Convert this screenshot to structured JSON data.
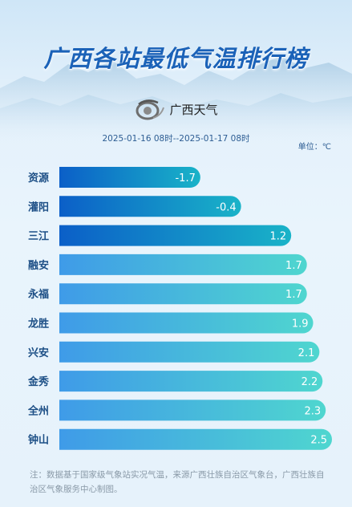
{
  "title": "广西各站最低气温排行榜",
  "logo_text": "广西天气",
  "date_range": "2025-01-16 08时--2025-01-17 08时",
  "unit": "单位：℃",
  "note": "注：数据基于国家级气象站实况气温，来源广西壮族自治区气象台，广西壮族自治区气象服务中心制图。",
  "colors": {
    "title": "#1b62b8",
    "bar_top_start": "#0b5fc8",
    "bar_top_end": "#19b3c8",
    "bar_rest_start": "#3f9be8",
    "bar_rest_end": "#4fd6cf"
  },
  "chart_data": {
    "type": "bar",
    "orientation": "horizontal",
    "categories": [
      "资源",
      "灌阳",
      "三江",
      "融安",
      "永福",
      "龙胜",
      "兴安",
      "金秀",
      "全州",
      "钟山"
    ],
    "values": [
      -1.7,
      -0.4,
      1.2,
      1.7,
      1.7,
      1.9,
      2.1,
      2.2,
      2.3,
      2.5
    ],
    "value_labels": [
      "-1.7",
      "-0.4",
      "1.2",
      "1.7",
      "1.7",
      "1.9",
      "2.1",
      "2.2",
      "2.3",
      "2.5"
    ],
    "xlim": [
      -6.2,
      2.5
    ],
    "grid": false,
    "legend": "none"
  }
}
